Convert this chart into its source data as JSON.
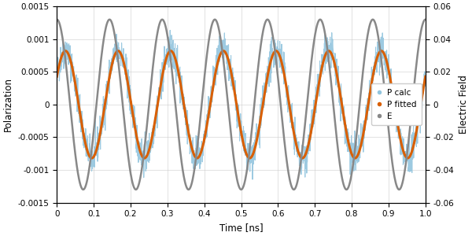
{
  "title": "",
  "xlabel": "Time [ns]",
  "ylabel_left": "Polarization",
  "ylabel_right": "Electric Field",
  "xlim": [
    0,
    1
  ],
  "ylim_left": [
    -0.0015,
    0.0015
  ],
  "ylim_right": [
    -0.06,
    0.06
  ],
  "freq_hz": 7.0,
  "P_amplitude": 0.00082,
  "P_phase_rad": 0.55,
  "E_amplitude": 0.052,
  "E_phase_rad": 1.57,
  "noise_amplitude": 0.00013,
  "color_pcalc": "#92c5de",
  "color_pfitted": "#d95f02",
  "color_E": "#888888",
  "legend_labels": [
    "P calc",
    "P fitted",
    "E"
  ],
  "n_points_noisy": 2000,
  "n_points_smooth": 1000,
  "xticks": [
    0,
    0.1,
    0.2,
    0.3,
    0.4,
    0.5,
    0.6,
    0.7,
    0.8,
    0.9,
    1.0
  ],
  "yticks_left": [
    -0.0015,
    -0.001,
    -0.0005,
    0,
    0.0005,
    0.001,
    0.0015
  ],
  "yticks_right": [
    -0.06,
    -0.04,
    -0.02,
    0,
    0.02,
    0.04,
    0.06
  ],
  "ytick_labels_left": [
    "-0.0015",
    "-0.001",
    "-0.0005",
    "0",
    "0.0005",
    "0.001",
    "0.0015"
  ],
  "ytick_labels_right": [
    "-0.06",
    "-0.04",
    "-0.02",
    "0",
    "0.02",
    "0.04",
    "0.06"
  ],
  "grid": true,
  "background_color": "#ffffff",
  "linewidth_fitted": 2.2,
  "linewidth_E": 1.8,
  "linewidth_pcalc": 0.8,
  "alpha_pcalc": 0.9,
  "figsize": [
    6.0,
    3.0
  ],
  "dpi": 100
}
